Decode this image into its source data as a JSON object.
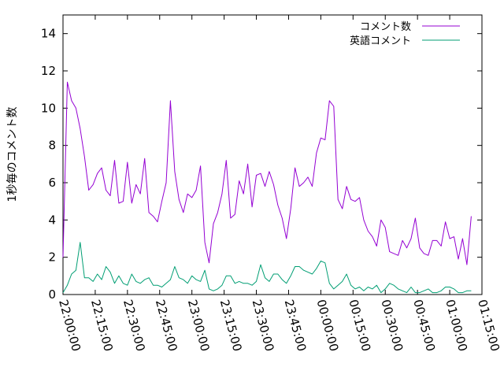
{
  "chart_data": {
    "type": "line",
    "ylabel": "1秒毎のコメント数",
    "xlabel": "",
    "x_ticks": [
      "22:00:00",
      "22:15:00",
      "22:30:00",
      "22:45:00",
      "23:00:00",
      "23:15:00",
      "23:30:00",
      "23:45:00",
      "00:00:00",
      "00:15:00",
      "00:30:00",
      "00:45:00",
      "01:00:00",
      "01:15:00"
    ],
    "x_range_minutes": [
      0,
      195
    ],
    "y_ticks": [
      0,
      2,
      4,
      6,
      8,
      10,
      12,
      14
    ],
    "ylim": [
      0,
      15
    ],
    "grid": false,
    "legend_position": "top-right",
    "series": [
      {
        "name": "コメント数",
        "color": "#9400d3",
        "x_minutes": [
          0,
          2,
          4,
          6,
          8,
          10,
          12,
          14,
          16,
          18,
          20,
          22,
          24,
          26,
          28,
          30,
          32,
          34,
          36,
          38,
          40,
          42,
          44,
          46,
          48,
          50,
          52,
          54,
          56,
          58,
          60,
          62,
          64,
          66,
          68,
          70,
          72,
          74,
          76,
          78,
          80,
          82,
          84,
          86,
          88,
          90,
          92,
          94,
          96,
          98,
          100,
          102,
          104,
          106,
          108,
          110,
          112,
          114,
          116,
          118,
          120,
          122,
          124,
          126,
          128,
          130,
          132,
          134,
          136,
          138,
          140,
          142,
          144,
          146,
          148,
          150,
          152,
          154,
          156,
          158,
          160,
          162,
          164,
          166,
          168,
          170,
          172,
          174,
          176,
          178,
          180,
          182,
          184,
          186,
          188,
          190
        ],
        "values": [
          2.0,
          11.4,
          10.4,
          10.0,
          8.9,
          7.4,
          5.6,
          5.9,
          6.5,
          6.8,
          5.6,
          5.3,
          7.2,
          4.9,
          5.0,
          7.1,
          4.9,
          5.9,
          5.4,
          7.3,
          4.4,
          4.2,
          3.9,
          5.0,
          6.0,
          10.4,
          6.6,
          5.1,
          4.4,
          5.4,
          5.2,
          5.6,
          6.9,
          2.8,
          1.7,
          3.8,
          4.4,
          5.4,
          7.2,
          4.1,
          4.3,
          6.1,
          5.4,
          7.0,
          4.7,
          6.4,
          6.5,
          5.8,
          6.6,
          5.9,
          4.8,
          4.1,
          3.0,
          4.6,
          6.8,
          5.8,
          6.0,
          6.3,
          5.8,
          7.6,
          8.4,
          8.3,
          10.4,
          10.1,
          5.1,
          4.6,
          5.8,
          5.1,
          5.0,
          5.2,
          4.0,
          3.4,
          3.1,
          2.6,
          4.0,
          3.6,
          2.3,
          2.2,
          2.1,
          2.9,
          2.5,
          3.0,
          4.1,
          2.5,
          2.2,
          2.1,
          2.9,
          2.9,
          2.6,
          3.9,
          3.0,
          3.1,
          1.9,
          3.0,
          1.6,
          4.2
        ]
      },
      {
        "name": "英語コメント",
        "color": "#009e73",
        "x_minutes": [
          0,
          2,
          4,
          6,
          8,
          10,
          12,
          14,
          16,
          18,
          20,
          22,
          24,
          26,
          28,
          30,
          32,
          34,
          36,
          38,
          40,
          42,
          44,
          46,
          48,
          50,
          52,
          54,
          56,
          58,
          60,
          62,
          64,
          66,
          68,
          70,
          72,
          74,
          76,
          78,
          80,
          82,
          84,
          86,
          88,
          90,
          92,
          94,
          96,
          98,
          100,
          102,
          104,
          106,
          108,
          110,
          112,
          114,
          116,
          118,
          120,
          122,
          124,
          126,
          128,
          130,
          132,
          134,
          136,
          138,
          140,
          142,
          144,
          146,
          148,
          150,
          152,
          154,
          156,
          158,
          160,
          162,
          164,
          166,
          168,
          170,
          172,
          174,
          176,
          178,
          180,
          182,
          184,
          186,
          188,
          190
        ],
        "values": [
          0.1,
          0.5,
          1.1,
          1.3,
          2.8,
          0.9,
          0.9,
          0.7,
          1.1,
          0.8,
          1.5,
          1.2,
          0.6,
          1.0,
          0.6,
          0.5,
          1.1,
          0.7,
          0.6,
          0.8,
          0.9,
          0.5,
          0.5,
          0.4,
          0.6,
          0.8,
          1.5,
          0.9,
          0.8,
          0.6,
          1.0,
          0.8,
          0.7,
          1.3,
          0.3,
          0.2,
          0.3,
          0.5,
          1.0,
          1.0,
          0.6,
          0.7,
          0.6,
          0.6,
          0.5,
          0.7,
          1.6,
          0.9,
          0.7,
          1.1,
          1.1,
          0.8,
          0.6,
          1.0,
          1.5,
          1.5,
          1.3,
          1.2,
          1.1,
          1.4,
          1.8,
          1.7,
          0.6,
          0.3,
          0.5,
          0.7,
          1.1,
          0.5,
          0.3,
          0.4,
          0.2,
          0.4,
          0.3,
          0.5,
          0.1,
          0.3,
          0.6,
          0.5,
          0.3,
          0.2,
          0.1,
          0.4,
          0.1,
          0.1,
          0.2,
          0.3,
          0.1,
          0.1,
          0.2,
          0.4,
          0.4,
          0.3,
          0.1,
          0.1,
          0.2,
          0.2
        ]
      }
    ]
  }
}
